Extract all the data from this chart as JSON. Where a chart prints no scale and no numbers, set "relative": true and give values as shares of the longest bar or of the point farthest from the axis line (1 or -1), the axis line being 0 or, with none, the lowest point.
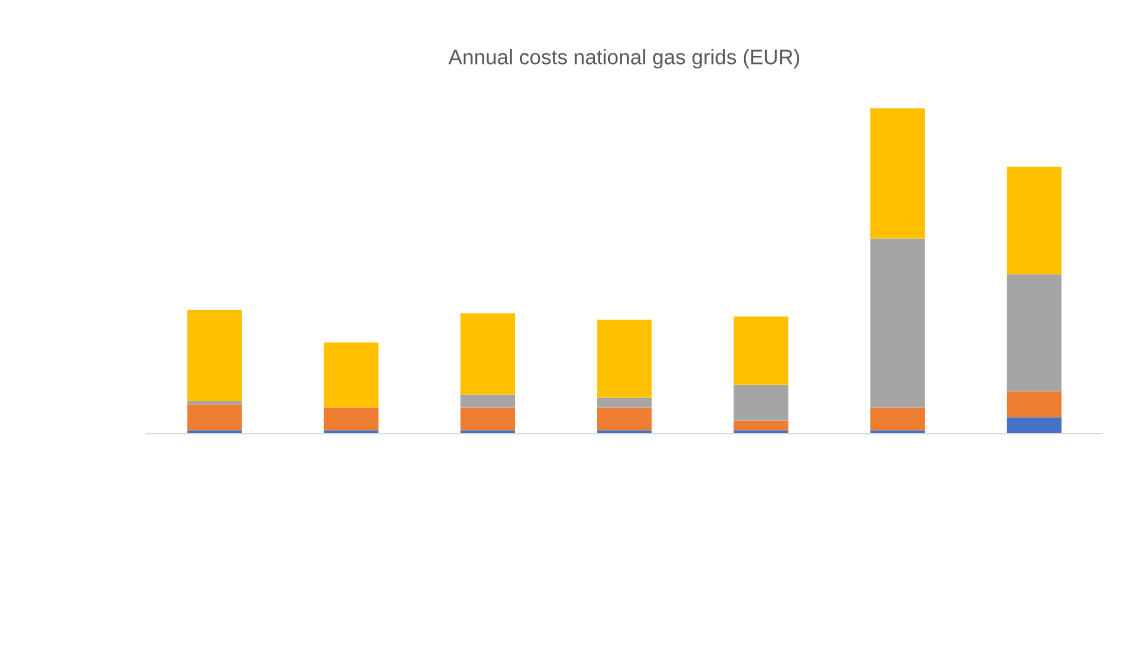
{
  "chart_data": {
    "type": "bar",
    "title": "Annual costs national gas grids (EUR)",
    "relative": true,
    "stacked": true,
    "categories": [
      null,
      null,
      null,
      null,
      null,
      null,
      null
    ],
    "series": [
      {
        "color": "#4472c4",
        "values": [
          0.01,
          0.01,
          0.01,
          0.01,
          0.01,
          0.01,
          0.05
        ]
      },
      {
        "color": "#ed7d31",
        "values": [
          0.08,
          0.07,
          0.07,
          0.07,
          0.03,
          0.07,
          0.08
        ]
      },
      {
        "color": "#a5a5a5",
        "values": [
          0.01,
          0.0,
          0.04,
          0.03,
          0.11,
          0.52,
          0.36
        ]
      },
      {
        "color": "#ffc000",
        "values": [
          0.28,
          0.2,
          0.25,
          0.24,
          0.21,
          0.4,
          0.33
        ]
      }
    ]
  }
}
